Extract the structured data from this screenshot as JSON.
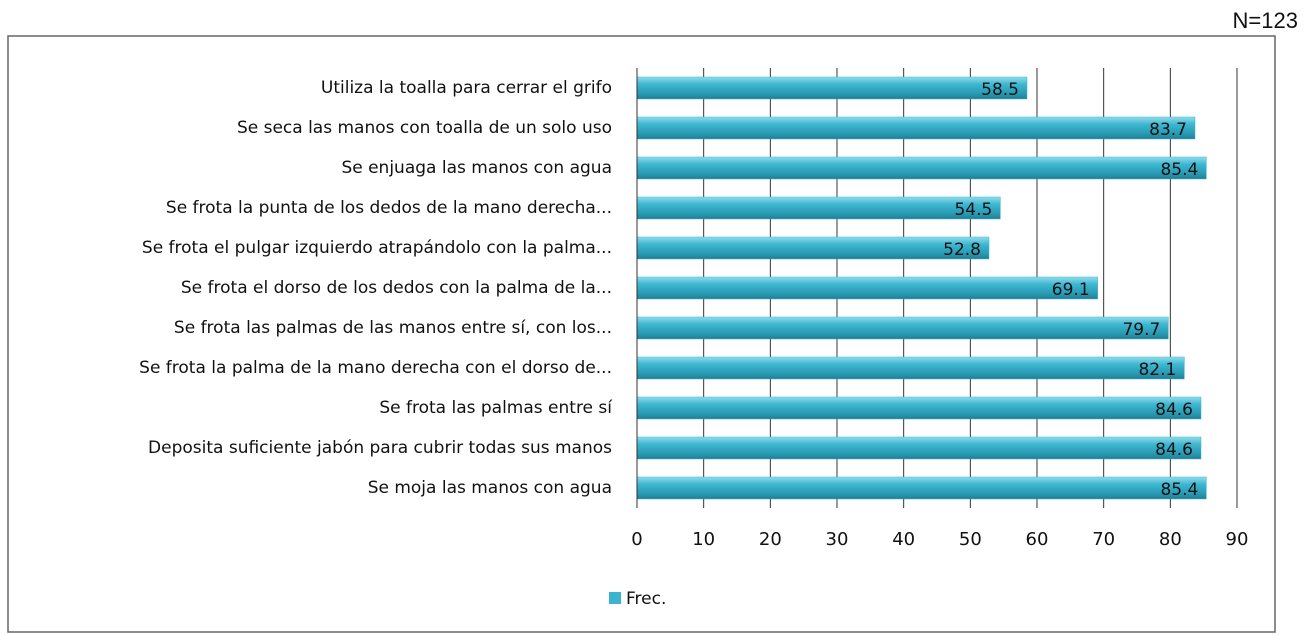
{
  "chart_data": {
    "type": "bar",
    "orientation": "horizontal",
    "annotation": "N=123",
    "categories": [
      "Utiliza la toalla para cerrar el grifo",
      "Se seca las manos con toalla de un solo uso",
      "Se enjuaga las manos con agua",
      "Se frota la punta de los dedos de la mano derecha...",
      "Se frota el pulgar izquierdo atrapándolo con la palma...",
      "Se frota el dorso de los dedos con la palma de la...",
      "Se frota las palmas de las manos entre sí, con los...",
      "Se frota la palma de la mano derecha con el dorso de...",
      "Se frota las palmas entre sí",
      "Deposita suficiente jabón para cubrir todas sus manos",
      "Se moja las manos con agua"
    ],
    "series": [
      {
        "name": "Frec.",
        "color": "#3bb5cf",
        "values": [
          58.5,
          83.7,
          85.4,
          54.5,
          52.8,
          69.1,
          79.7,
          82.1,
          84.6,
          84.6,
          85.4
        ]
      }
    ],
    "xlim": [
      0,
      90
    ],
    "xticks": [
      0,
      10,
      20,
      30,
      40,
      50,
      60,
      70,
      80,
      90
    ],
    "grid": true,
    "legend": "bottom"
  }
}
